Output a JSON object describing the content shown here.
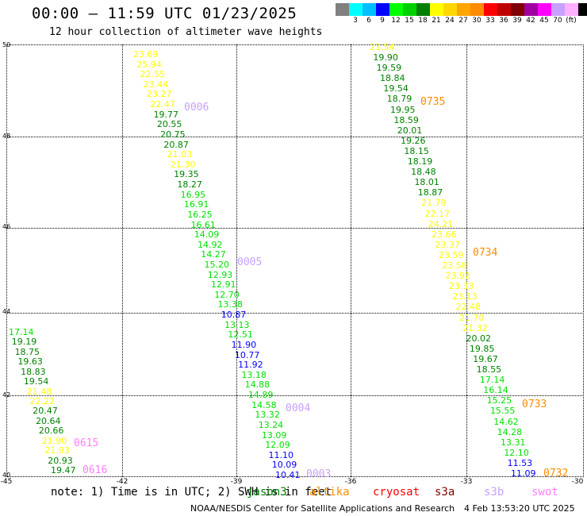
{
  "header": {
    "title": "00:00 – 11:59 UTC 01/23/2025",
    "subtitle": "12 hour collection of altimeter wave heights"
  },
  "colorbar": {
    "colors": [
      "#808080",
      "#00ffff",
      "#00bfff",
      "#0000ff",
      "#00ff00",
      "#00d000",
      "#008000",
      "#ffff00",
      "#ffd700",
      "#ffa500",
      "#ff8c00",
      "#ff0000",
      "#c00000",
      "#800000",
      "#a000a0",
      "#ff00ff",
      "#c8a0ff",
      "#ffb0ff",
      "#000000"
    ],
    "labels": [
      "3",
      "6",
      "9",
      "12",
      "15",
      "18",
      "21",
      "24",
      "27",
      "30",
      "33",
      "36",
      "39",
      "42",
      "45",
      "70",
      "(ft)"
    ]
  },
  "axes": {
    "lat_labels": [
      "50",
      "48",
      "46",
      "44",
      "42",
      "40"
    ],
    "lon_labels": [
      "-45",
      "-42",
      "-39",
      "-36",
      "-33",
      "-30"
    ]
  },
  "colors": {
    "y": "#ffff00",
    "g": "#00e000",
    "dg": "#008000",
    "b": "#0000ff",
    "o": "#ff8c00",
    "p": "#c8a0ff",
    "pk": "#ff80ff"
  },
  "tracks": {
    "t1": [
      "23.69",
      "25.94",
      "22.55",
      "23.44",
      "23.27",
      "22.47",
      "19.77",
      "20.55",
      "20.75",
      "20.87",
      "21.03",
      "21.30",
      "19.35",
      "18.27",
      "16.95",
      "16.91",
      "16.25",
      "16.61",
      "14.09",
      "14.92",
      "14.27",
      "15.20",
      "12.93",
      "12.91",
      "12.70",
      "13.38",
      "10.87",
      "13.13",
      "12.51",
      "11.90",
      "10.77",
      "11.92",
      "13.18",
      "14.88",
      "14.89",
      "14.58",
      "13.32",
      "13.24",
      "13.09",
      "12.09",
      "11.10",
      "10.09",
      "10.41"
    ],
    "t2": [
      "21.54",
      "19.90",
      "19.59",
      "18.84",
      "19.54",
      "18.79",
      "19.95",
      "18.59",
      "20.01",
      "19.26",
      "18.15",
      "18.19",
      "18.48",
      "18.01",
      "18.87",
      "21.79",
      "22.17",
      "24.21",
      "23.66",
      "23.37",
      "23.59",
      "23.58",
      "23.92",
      "23.33",
      "23.13",
      "22.48",
      "21.70",
      "21.32",
      "20.02",
      "19.85",
      "19.67",
      "18.55",
      "17.14",
      "16.14",
      "15.25",
      "15.55",
      "14.62",
      "14.28",
      "13.31",
      "12.10",
      "11.53",
      "11.09"
    ],
    "t3": [
      "17.14",
      "19.19",
      "18.75",
      "19.63",
      "18.83",
      "19.54",
      "21.48",
      "22.22",
      "20.47",
      "20.64",
      "20.66",
      "21.90",
      "21.93",
      "20.93",
      "19.47"
    ]
  },
  "passes": {
    "p0006": "0006",
    "p0005": "0005",
    "p0004": "0004",
    "p0003": "0003",
    "p0735": "0735",
    "p0734": "0734",
    "p0733": "0733",
    "p0732": "0732",
    "p0615": "0615",
    "p0616": "0616"
  },
  "footer": {
    "note": "note: 1) Time is in UTC; 2) SWH is in feet",
    "satellites": [
      "jason3",
      "altika",
      "cryosat",
      "s3a",
      "s3b",
      "swot"
    ],
    "sat_colors": [
      "#008000",
      "#ff8c00",
      "#ff0000",
      "#800000",
      "#c8a0ff",
      "#ff80ff"
    ],
    "credit_left": "NOAA/NESDIS Center for Satellite Applications and Research",
    "credit_right": "4 Feb 13:53:20 UTC 2025"
  }
}
